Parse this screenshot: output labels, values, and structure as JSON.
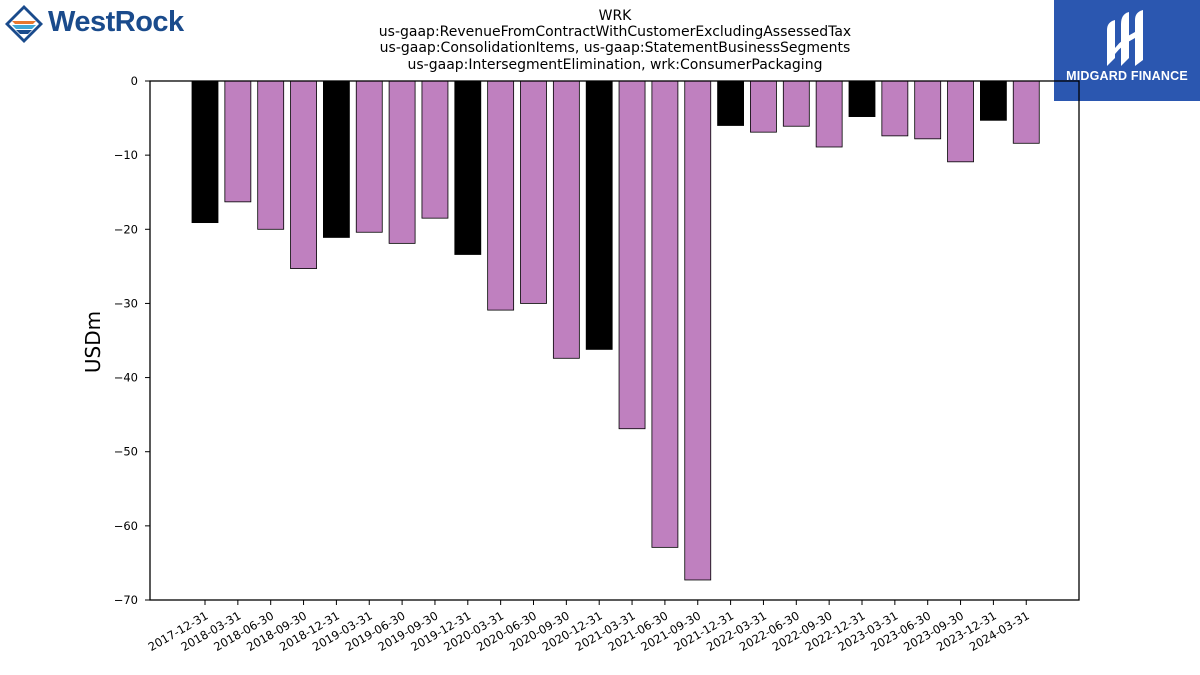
{
  "brand": {
    "left_logo_text": "WestRock",
    "left_logo_color": "#1a4b8c",
    "right_logo_text": "MIDGARD FINANCE",
    "right_logo_bg": "#2b57b0"
  },
  "chart_data": {
    "type": "bar",
    "title_lines": [
      "WRK",
      "us-gaap:RevenueFromContractWithCustomerExcludingAssessedTax",
      "us-gaap:ConsolidationItems, us-gaap:StatementBusinessSegments",
      "us-gaap:IntersegmentElimination, wrk:ConsumerPackaging"
    ],
    "xlabel": "",
    "ylabel": "USDm",
    "ylim": [
      -70,
      0
    ],
    "yticks": [
      0,
      -10,
      -20,
      -30,
      -40,
      -50,
      -60,
      -70
    ],
    "grid": false,
    "categories": [
      "2017-12-31",
      "2018-03-31",
      "2018-06-30",
      "2018-09-30",
      "2018-12-31",
      "2019-03-31",
      "2019-06-30",
      "2019-09-30",
      "2019-12-31",
      "2020-03-31",
      "2020-06-30",
      "2020-09-30",
      "2020-12-31",
      "2021-03-31",
      "2021-06-30",
      "2021-09-30",
      "2021-12-31",
      "2022-03-31",
      "2022-06-30",
      "2022-09-30",
      "2022-12-31",
      "2023-03-31",
      "2023-06-30",
      "2023-09-30",
      "2023-12-31",
      "2024-03-31"
    ],
    "values": [
      -19.1,
      -16.3,
      -20.0,
      -25.3,
      -21.1,
      -20.4,
      -21.9,
      -18.5,
      -23.4,
      -30.9,
      -30.0,
      -37.4,
      -36.2,
      -46.9,
      -62.9,
      -67.3,
      -6.0,
      -6.9,
      -6.1,
      -8.9,
      -4.8,
      -7.4,
      -7.8,
      -10.9,
      -5.3,
      -8.4
    ],
    "bar_colors": [
      "#000000",
      "#bf80bf",
      "#bf80bf",
      "#bf80bf",
      "#000000",
      "#bf80bf",
      "#bf80bf",
      "#bf80bf",
      "#000000",
      "#bf80bf",
      "#bf80bf",
      "#bf80bf",
      "#000000",
      "#bf80bf",
      "#bf80bf",
      "#bf80bf",
      "#000000",
      "#bf80bf",
      "#bf80bf",
      "#bf80bf",
      "#000000",
      "#bf80bf",
      "#bf80bf",
      "#bf80bf",
      "#000000",
      "#bf80bf"
    ]
  }
}
